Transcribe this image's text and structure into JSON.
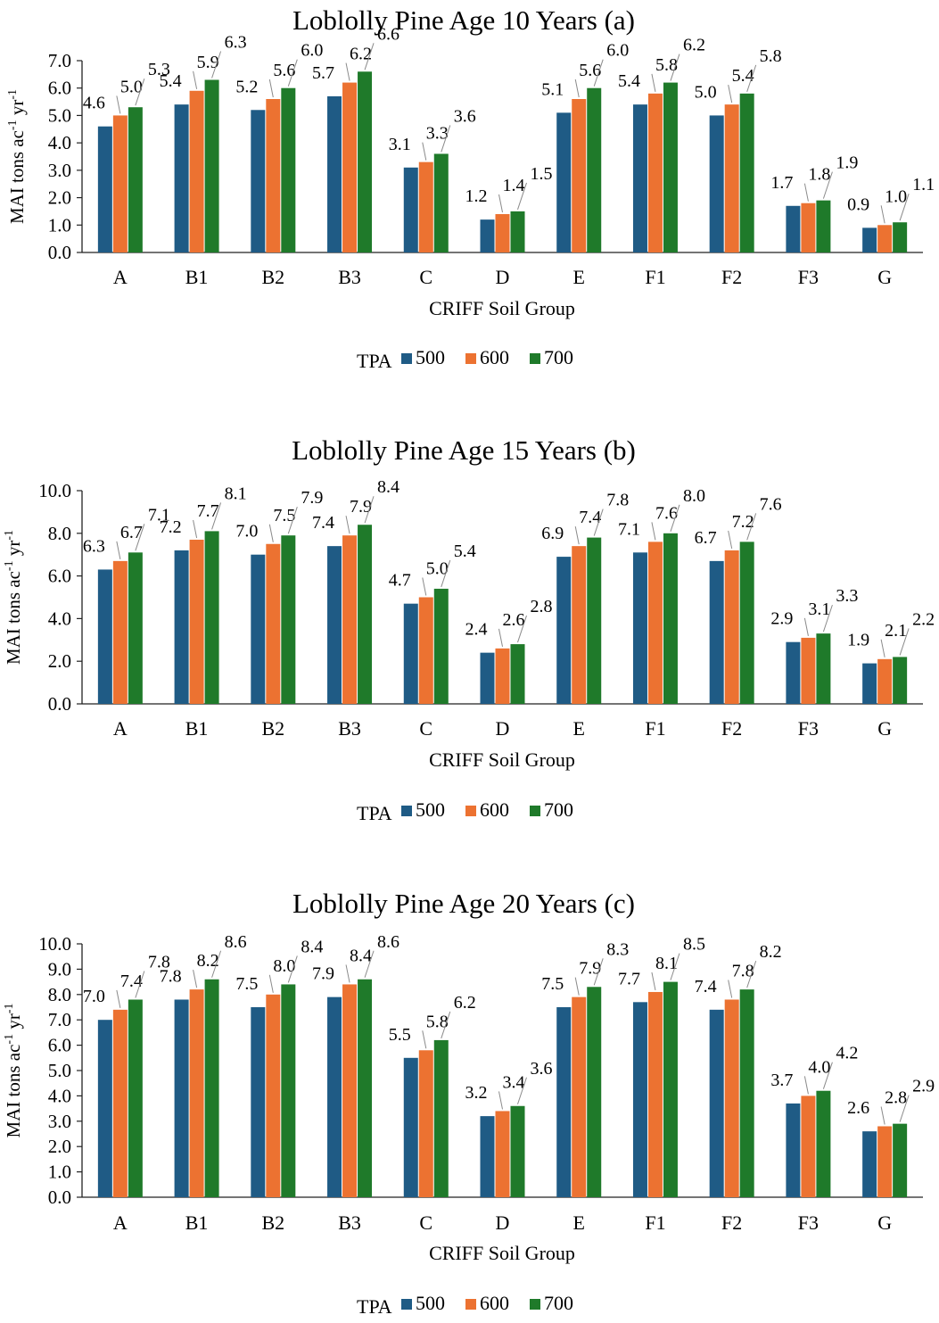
{
  "colors": {
    "tpa_500": "#1f5b85",
    "tpa_600": "#ec7231",
    "tpa_700": "#1f7a2a"
  },
  "chart_data": [
    {
      "type": "bar",
      "title": "Loblolly Pine Age 10 Years (a)",
      "xlabel": "CRIFF Soil Group",
      "ylabel_main": "MAI tons ac",
      "ylabel_sup1": "-1",
      "ylabel_mid": " yr",
      "ylabel_sup2": "-1",
      "ylim": [
        0,
        7
      ],
      "yticks": [
        "0.0",
        "1.0",
        "2.0",
        "3.0",
        "4.0",
        "5.0",
        "6.0",
        "7.0"
      ],
      "ytick_values": [
        0,
        1,
        2,
        3,
        4,
        5,
        6,
        7
      ],
      "legend_title": "TPA",
      "legend_position": "bottom",
      "categories": [
        "A",
        "B1",
        "B2",
        "B3",
        "C",
        "D",
        "E",
        "F1",
        "F2",
        "F3",
        "G"
      ],
      "series": [
        {
          "name": "500",
          "values": [
            4.6,
            5.4,
            5.2,
            5.7,
            3.1,
            1.2,
            5.1,
            5.4,
            5.0,
            1.7,
            0.9
          ],
          "labels": [
            "4.6",
            "5.4",
            "5.2",
            "5.7",
            "3.1",
            "1.2",
            "5.1",
            "5.4",
            "5.0",
            "1.7",
            "0.9"
          ]
        },
        {
          "name": "600",
          "values": [
            5.0,
            5.9,
            5.6,
            6.2,
            3.3,
            1.4,
            5.6,
            5.8,
            5.4,
            1.8,
            1.0
          ],
          "labels": [
            "5.0",
            "5.9",
            "5.6",
            "6.2",
            "3.3",
            "1.4",
            "5.6",
            "5.8",
            "5.4",
            "1.8",
            "1.0"
          ]
        },
        {
          "name": "700",
          "values": [
            5.3,
            6.3,
            6.0,
            6.6,
            3.6,
            1.5,
            6.0,
            6.2,
            5.8,
            1.9,
            1.1
          ],
          "labels": [
            "5.3",
            "6.3",
            "6.0",
            "6.6",
            "3.6",
            "1.5",
            "6.0",
            "6.2",
            "5.8",
            "1.9",
            "1.1"
          ]
        }
      ]
    },
    {
      "type": "bar",
      "title": "Loblolly Pine Age 15 Years (b)",
      "xlabel": "CRIFF Soil Group",
      "ylabel_main": "MAI tons ac",
      "ylabel_sup1": "-1",
      "ylabel_mid": " yr",
      "ylabel_sup2": "-1",
      "ylim": [
        0,
        10
      ],
      "yticks": [
        "0.0",
        "2.0",
        "4.0",
        "6.0",
        "8.0",
        "10.0"
      ],
      "ytick_values": [
        0,
        2,
        4,
        6,
        8,
        10
      ],
      "legend_title": "TPA",
      "legend_position": "bottom",
      "categories": [
        "A",
        "B1",
        "B2",
        "B3",
        "C",
        "D",
        "E",
        "F1",
        "F2",
        "F3",
        "G"
      ],
      "series": [
        {
          "name": "500",
          "values": [
            6.3,
            7.2,
            7.0,
            7.4,
            4.7,
            2.4,
            6.9,
            7.1,
            6.7,
            2.9,
            1.9
          ],
          "labels": [
            "6.3",
            "7.2",
            "7.0",
            "7.4",
            "4.7",
            "2.4",
            "6.9",
            "7.1",
            "6.7",
            "2.9",
            "1.9"
          ]
        },
        {
          "name": "600",
          "values": [
            6.7,
            7.7,
            7.5,
            7.9,
            5.0,
            2.6,
            7.4,
            7.6,
            7.2,
            3.1,
            2.1
          ],
          "labels": [
            "6.7",
            "7.7",
            "7.5",
            "7.9",
            "5.0",
            "2.6",
            "7.4",
            "7.6",
            "7.2",
            "3.1",
            "2.1"
          ]
        },
        {
          "name": "700",
          "values": [
            7.1,
            8.1,
            7.9,
            8.4,
            5.4,
            2.8,
            7.8,
            8.0,
            7.6,
            3.3,
            2.2
          ],
          "labels": [
            "7.1",
            "8.1",
            "7.9",
            "8.4",
            "5.4",
            "2.8",
            "7.8",
            "8.0",
            "7.6",
            "3.3",
            "2.2"
          ]
        }
      ]
    },
    {
      "type": "bar",
      "title": "Loblolly Pine Age 20 Years (c)",
      "xlabel": "CRIFF Soil Group",
      "ylabel_main": "MAI tons ac",
      "ylabel_sup1": "-1",
      "ylabel_mid": " yr",
      "ylabel_sup2": "-1",
      "ylim": [
        0,
        10
      ],
      "yticks": [
        "0.0",
        "1.0",
        "2.0",
        "3.0",
        "4.0",
        "5.0",
        "6.0",
        "7.0",
        "8.0",
        "9.0",
        "10.0"
      ],
      "ytick_values": [
        0,
        1,
        2,
        3,
        4,
        5,
        6,
        7,
        8,
        9,
        10
      ],
      "legend_title": "TPA",
      "legend_position": "bottom",
      "categories": [
        "A",
        "B1",
        "B2",
        "B3",
        "C",
        "D",
        "E",
        "F1",
        "F2",
        "F3",
        "G"
      ],
      "series": [
        {
          "name": "500",
          "values": [
            7.0,
            7.8,
            7.5,
            7.9,
            5.5,
            3.2,
            7.5,
            7.7,
            7.4,
            3.7,
            2.6
          ],
          "labels": [
            "7.0",
            "7.8",
            "7.5",
            "7.9",
            "5.5",
            "3.2",
            "7.5",
            "7.7",
            "7.4",
            "3.7",
            "2.6"
          ]
        },
        {
          "name": "600",
          "values": [
            7.4,
            8.2,
            8.0,
            8.4,
            5.8,
            3.4,
            7.9,
            8.1,
            7.8,
            4.0,
            2.8
          ],
          "labels": [
            "7.4",
            "8.2",
            "8.0",
            "8.4",
            "5.8",
            "3.4",
            "7.9",
            "8.1",
            "7.8",
            "4.0",
            "2.8"
          ]
        },
        {
          "name": "700",
          "values": [
            7.8,
            8.6,
            8.4,
            8.6,
            6.2,
            3.6,
            8.3,
            8.5,
            8.2,
            4.2,
            2.9
          ],
          "labels": [
            "7.8",
            "8.6",
            "8.4",
            "8.6",
            "6.2",
            "3.6",
            "8.3",
            "8.5",
            "8.2",
            "4.2",
            "2.9"
          ]
        }
      ]
    }
  ]
}
